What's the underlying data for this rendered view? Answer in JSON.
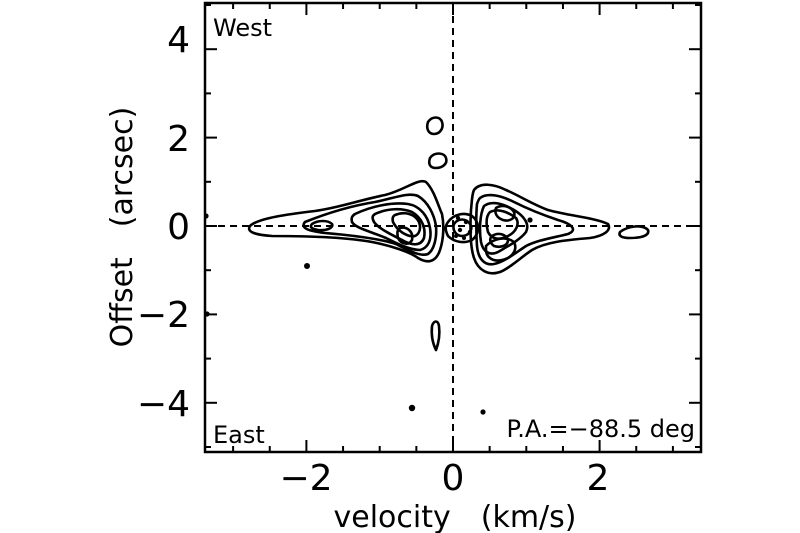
{
  "chart_data": {
    "type": "contour",
    "xlabel": "velocity　(km/s)",
    "ylabel": "Offset　(arcsec)",
    "xlim": [
      -3.4,
      3.4
    ],
    "ylim": [
      -5,
      5
    ],
    "x_ticks": [
      -2,
      0,
      2
    ],
    "x_tick_labels": [
      "−2",
      "0",
      "2"
    ],
    "y_ticks": [
      -4,
      -2,
      0,
      2,
      4
    ],
    "y_tick_labels": [
      "−4",
      "−2",
      "0",
      "2",
      "4"
    ],
    "reference_lines": [
      {
        "axis": "x",
        "value": 0,
        "style": "dashed"
      },
      {
        "axis": "y",
        "value": 0,
        "style": "dashed"
      }
    ],
    "annotations": {
      "top_left": "West",
      "bottom_left": "East",
      "bottom_right": "P.A.=−88.5 deg"
    },
    "grid": false,
    "contour_features": [
      {
        "name": "blue-lobe",
        "velocity_range": [
          -2.8,
          -0.1
        ],
        "offset_range": [
          -0.6,
          1.1
        ]
      },
      {
        "name": "red-lobe",
        "velocity_range": [
          0.3,
          2.1
        ],
        "offset_range": [
          -1.1,
          0.9
        ]
      },
      {
        "name": "outer-red-knot",
        "velocity": 2.5,
        "offset": -0.1
      },
      {
        "name": "upper-knot-1",
        "velocity": -0.25,
        "offset": 2.25
      },
      {
        "name": "upper-knot-2",
        "velocity": -0.2,
        "offset": 1.5
      },
      {
        "name": "lower-knot",
        "velocity": -0.25,
        "offset": -2.5
      }
    ]
  }
}
